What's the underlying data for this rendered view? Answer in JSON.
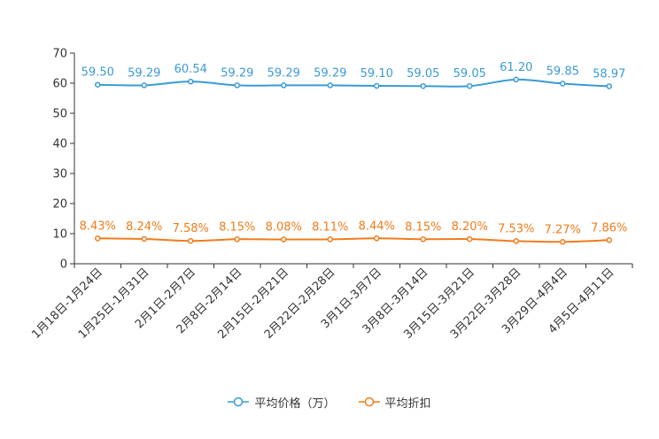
{
  "chart_data": {
    "type": "line",
    "categories": [
      "1月18日-1月24日",
      "1月25日-1月31日",
      "2月1日-2月7日",
      "2月8日-2月14日",
      "2月15日-2月21日",
      "2月22日-2月28日",
      "3月1日-3月7日",
      "3月8日-3月14日",
      "3月15日-3月21日",
      "3月22日-3月28日",
      "3月29日-4月4日",
      "4月5日-4月11日"
    ],
    "series": [
      {
        "name": "平均价格（万）",
        "color": "#3a9bd5",
        "values": [
          59.5,
          59.29,
          60.54,
          59.29,
          59.29,
          59.29,
          59.1,
          59.05,
          59.05,
          61.2,
          59.85,
          58.97
        ],
        "labels": [
          "59.50",
          "59.29",
          "60.54",
          "59.29",
          "59.29",
          "59.29",
          "59.10",
          "59.05",
          "59.05",
          "61.20",
          "59.85",
          "58.97"
        ]
      },
      {
        "name": "平均折扣",
        "color": "#f07c1c",
        "values": [
          8.43,
          8.24,
          7.58,
          8.15,
          8.08,
          8.11,
          8.44,
          8.15,
          8.2,
          7.53,
          7.27,
          7.86
        ],
        "labels": [
          "8.43%",
          "8.24%",
          "7.58%",
          "8.15%",
          "8.08%",
          "8.11%",
          "8.44%",
          "8.15%",
          "8.20%",
          "7.53%",
          "7.27%",
          "7.86%"
        ]
      }
    ],
    "yticks": [
      "0",
      "10",
      "20",
      "30",
      "40",
      "50",
      "60",
      "70"
    ],
    "ylim": [
      0,
      70
    ],
    "legend_position": "bottom-center"
  }
}
